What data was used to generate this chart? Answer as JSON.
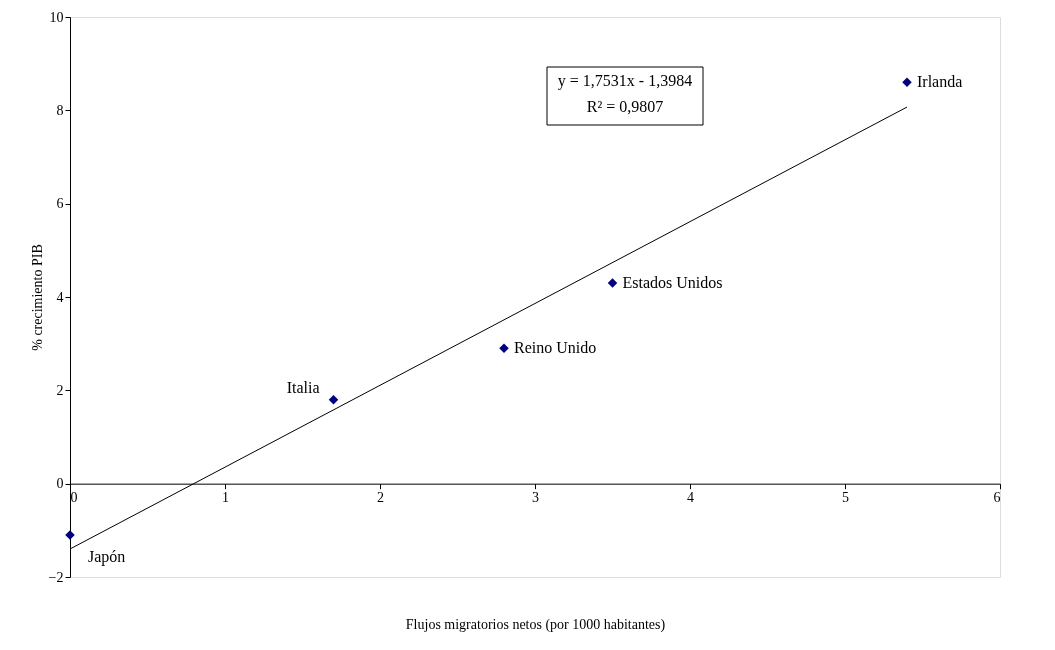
{
  "chart_data": {
    "type": "scatter",
    "xlabel": "Flujos migratorios netos (por 1000 habitantes)",
    "ylabel": "% crecimiento PIB",
    "xlim": [
      0,
      6
    ],
    "xticks": [
      0,
      1,
      2,
      3,
      4,
      5,
      6
    ],
    "ylim": [
      -2,
      10
    ],
    "yticks": [
      -2,
      0,
      2,
      4,
      6,
      8,
      10
    ],
    "grid": false,
    "marker": "diamond",
    "series": [
      {
        "color": "#000080",
        "x": [
          0,
          1.7,
          2.8,
          3.5,
          5.4
        ],
        "values": [
          -1.1,
          1.8,
          2.9,
          4.3,
          8.6
        ]
      },
      {
        "type": "line",
        "color": "#000000",
        "marker": "none",
        "line_style": "solid",
        "x": [
          0,
          5.4
        ],
        "values": [
          -1.4,
          8.07
        ]
      }
    ],
    "annotations": [
      {
        "text": "Japón",
        "x": 0,
        "y": -1.1
      },
      {
        "text": "Italia",
        "x": 1.7,
        "y": 1.8
      },
      {
        "text": "Reino Unido",
        "x": 2.8,
        "y": 2.9
      },
      {
        "text": "Estados Unidos",
        "x": 3.5,
        "y": 4.3
      },
      {
        "text": "Irlanda",
        "x": 5.4,
        "y": 8.6
      },
      "y = 1,7531x - 1,3984",
      "R² = 0,9807"
    ]
  }
}
